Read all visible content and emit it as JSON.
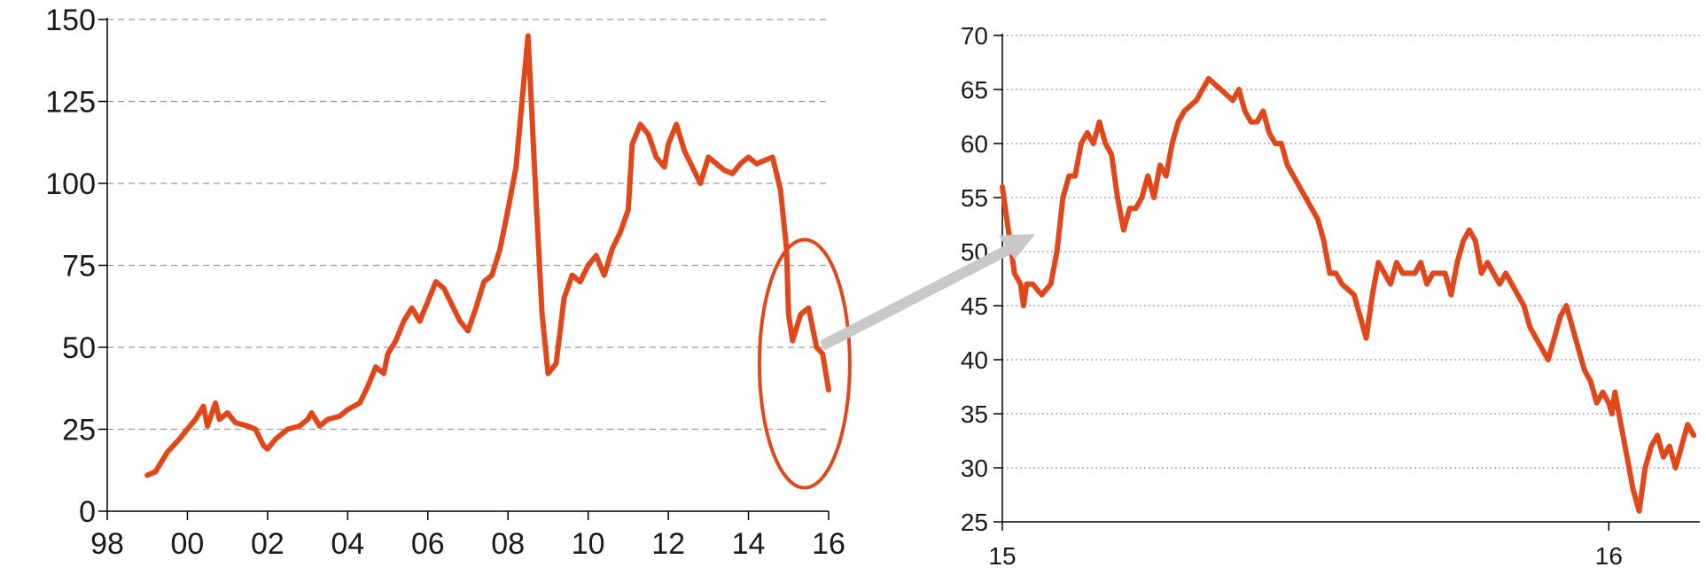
{
  "colors": {
    "series": "#E0481B",
    "arrow": "#C8C8C8",
    "grid": "#9a9a9a",
    "axis": "#000000"
  },
  "chart_data": [
    {
      "type": "line",
      "title": "",
      "xlabel": "",
      "ylabel": "",
      "xlim": [
        1998,
        2016
      ],
      "ylim": [
        0,
        150
      ],
      "y_ticks": [
        0,
        25,
        50,
        75,
        100,
        125,
        150
      ],
      "x_tick_values": [
        1998,
        2000,
        2002,
        2004,
        2006,
        2008,
        2010,
        2012,
        2014,
        2016
      ],
      "x_tick_labels": [
        "98",
        "00",
        "02",
        "04",
        "06",
        "08",
        "10",
        "12",
        "14",
        "16"
      ],
      "grid": "horizontal dashed",
      "legend": "none",
      "annotation": "ellipse around 2015–2016 with arrow to zoomed chart",
      "series": [
        {
          "x": [
            1999.0,
            1999.2,
            1999.5,
            1999.8,
            2000.0,
            2000.2,
            2000.4,
            2000.5,
            2000.7,
            2000.8,
            2001.0,
            2001.2,
            2001.5,
            2001.7,
            2001.9,
            2002.0,
            2002.2,
            2002.5,
            2002.8,
            2003.0,
            2003.1,
            2003.3,
            2003.5,
            2003.8,
            2004.0,
            2004.3,
            2004.5,
            2004.7,
            2004.9,
            2005.0,
            2005.2,
            2005.4,
            2005.6,
            2005.8,
            2006.0,
            2006.2,
            2006.4,
            2006.6,
            2006.8,
            2007.0,
            2007.2,
            2007.4,
            2007.6,
            2007.8,
            2008.0,
            2008.2,
            2008.35,
            2008.5,
            2008.6,
            2008.7,
            2008.85,
            2009.0,
            2009.2,
            2009.4,
            2009.6,
            2009.8,
            2010.0,
            2010.2,
            2010.4,
            2010.6,
            2010.8,
            2011.0,
            2011.1,
            2011.3,
            2011.5,
            2011.7,
            2011.9,
            2012.0,
            2012.2,
            2012.4,
            2012.6,
            2012.8,
            2013.0,
            2013.2,
            2013.4,
            2013.6,
            2013.8,
            2014.0,
            2014.2,
            2014.4,
            2014.6,
            2014.8,
            2014.95,
            2015.0,
            2015.1,
            2015.3,
            2015.5,
            2015.7,
            2015.85,
            2016.0
          ],
          "y": [
            11,
            12,
            18,
            22,
            25,
            28,
            32,
            26,
            33,
            28,
            30,
            27,
            26,
            25,
            20,
            19,
            22,
            25,
            26,
            28,
            30,
            26,
            28,
            29,
            31,
            33,
            38,
            44,
            42,
            48,
            52,
            58,
            62,
            58,
            64,
            70,
            68,
            63,
            58,
            55,
            62,
            70,
            72,
            80,
            92,
            105,
            125,
            145,
            120,
            95,
            60,
            42,
            45,
            65,
            72,
            70,
            75,
            78,
            72,
            80,
            85,
            92,
            112,
            118,
            115,
            108,
            105,
            112,
            118,
            110,
            105,
            100,
            108,
            106,
            104,
            103,
            106,
            108,
            106,
            107,
            108,
            98,
            80,
            60,
            52,
            60,
            62,
            50,
            48,
            37
          ]
        }
      ]
    },
    {
      "type": "line",
      "title": "",
      "xlabel": "",
      "ylabel": "",
      "xlim": [
        2015.0,
        2016.15
      ],
      "ylim": [
        25,
        70
      ],
      "y_ticks": [
        25,
        30,
        35,
        40,
        45,
        50,
        55,
        60,
        65,
        70
      ],
      "x_tick_values": [
        2015.0,
        2016.0
      ],
      "x_tick_labels": [
        "15",
        "16"
      ],
      "grid": "horizontal dotted",
      "legend": "none",
      "series": [
        {
          "x": [
            2015.0,
            2015.01,
            2015.02,
            2015.03,
            2015.035,
            2015.04,
            2015.05,
            2015.065,
            2015.08,
            2015.09,
            2015.1,
            2015.11,
            2015.12,
            2015.13,
            2015.14,
            2015.15,
            2015.16,
            2015.17,
            2015.18,
            2015.19,
            2015.2,
            2015.21,
            2015.22,
            2015.23,
            2015.24,
            2015.25,
            2015.26,
            2015.27,
            2015.28,
            2015.29,
            2015.3,
            2015.32,
            2015.34,
            2015.36,
            2015.38,
            2015.39,
            2015.4,
            2015.41,
            2015.42,
            2015.43,
            2015.44,
            2015.45,
            2015.46,
            2015.47,
            2015.48,
            2015.49,
            2015.5,
            2015.51,
            2015.52,
            2015.53,
            2015.54,
            2015.55,
            2015.56,
            2015.58,
            2015.6,
            2015.61,
            2015.62,
            2015.63,
            2015.64,
            2015.65,
            2015.66,
            2015.67,
            2015.68,
            2015.69,
            2015.7,
            2015.71,
            2015.72,
            2015.73,
            2015.74,
            2015.75,
            2015.76,
            2015.77,
            2015.78,
            2015.79,
            2015.8,
            2015.81,
            2015.82,
            2015.83,
            2015.84,
            2015.85,
            2015.86,
            2015.87,
            2015.88,
            2015.89,
            2015.9,
            2015.91,
            2015.92,
            2015.93,
            2015.94,
            2015.95,
            2015.96,
            2015.97,
            2015.98,
            2015.99,
            2016.0,
            2016.005,
            2016.01,
            2016.02,
            2016.03,
            2016.04,
            2016.05,
            2016.06,
            2016.07,
            2016.08,
            2016.09,
            2016.1,
            2016.11,
            2016.12,
            2016.13,
            2016.14
          ],
          "y": [
            56,
            52,
            48,
            47,
            45,
            47,
            47,
            46,
            47,
            50,
            55,
            57,
            57,
            60,
            61,
            60,
            62,
            60,
            59,
            55,
            52,
            54,
            54,
            55,
            57,
            55,
            58,
            57,
            60,
            62,
            63,
            64,
            66,
            65,
            64,
            65,
            63,
            62,
            62,
            63,
            61,
            60,
            60,
            58,
            57,
            56,
            55,
            54,
            53,
            51,
            48,
            48,
            47,
            46,
            42,
            46,
            49,
            48,
            47,
            49,
            48,
            48,
            48,
            49,
            47,
            48,
            48,
            48,
            46,
            49,
            51,
            52,
            51,
            48,
            49,
            48,
            47,
            48,
            47,
            46,
            45,
            43,
            42,
            41,
            40,
            42,
            44,
            45,
            43,
            41,
            39,
            38,
            36,
            37,
            36,
            35,
            37,
            34,
            31,
            28,
            26,
            30,
            32,
            33,
            31,
            32,
            30,
            32,
            34,
            33
          ]
        }
      ]
    }
  ]
}
